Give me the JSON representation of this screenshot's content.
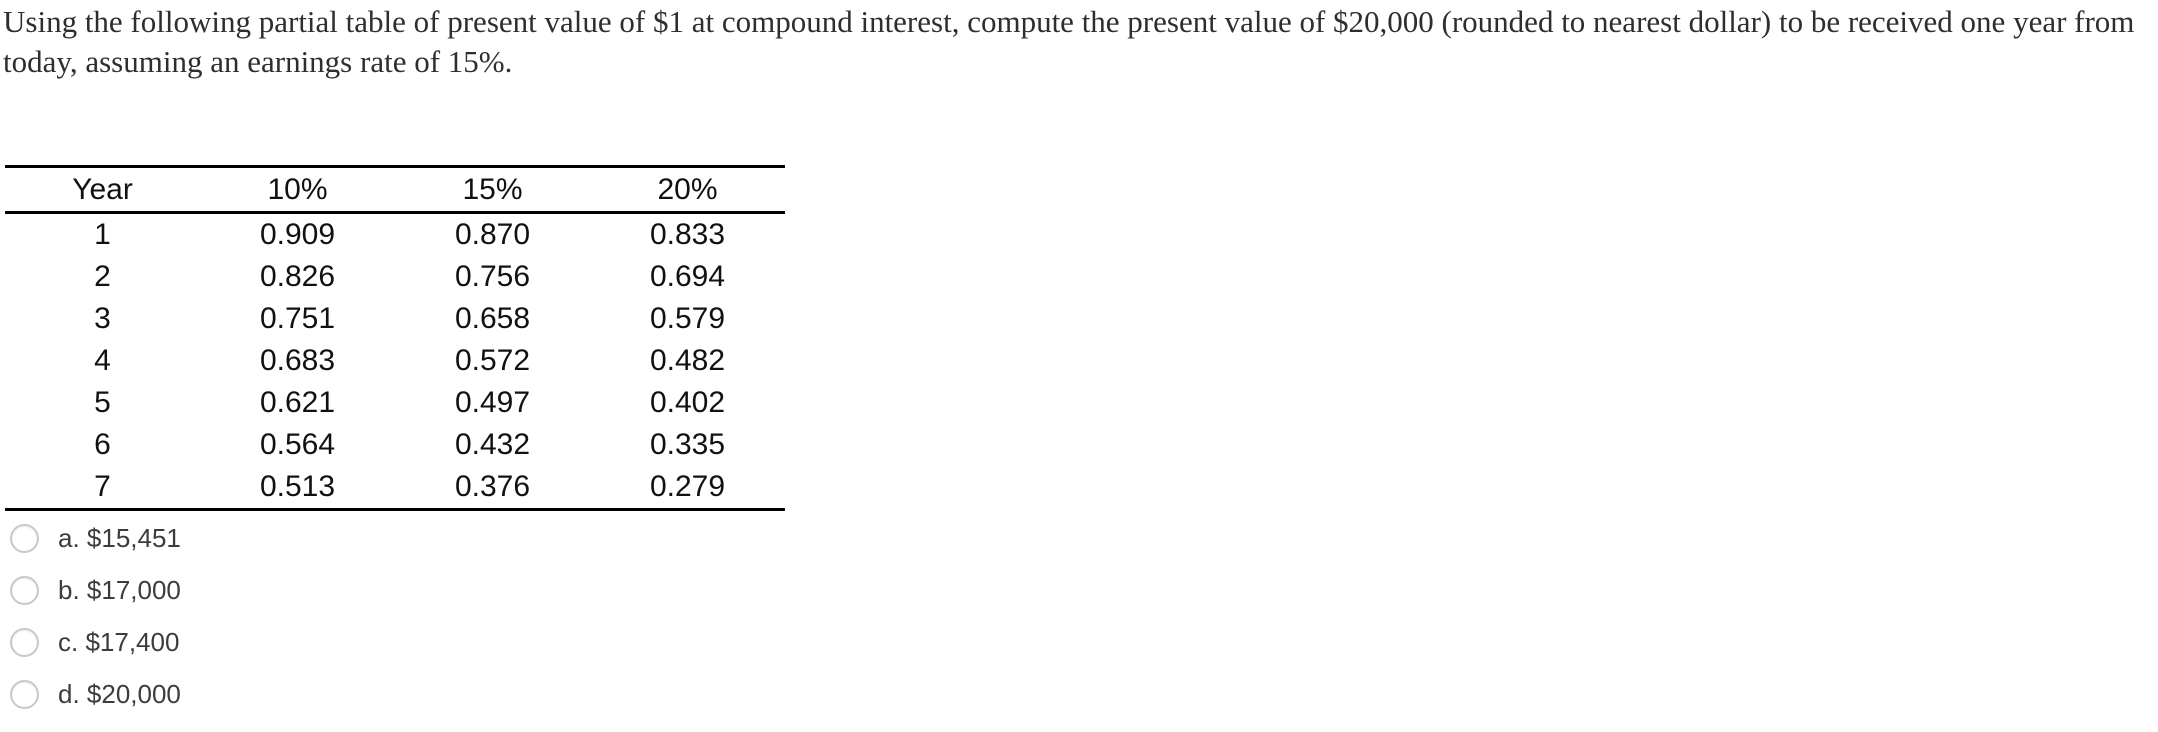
{
  "question": {
    "lines": [
      "Using the following partial table of present value of $1 at compound interest, compute the present value of $20,000 (rounded to nearest dollar) to be received one year from",
      "today, assuming an earnings rate of 15%."
    ]
  },
  "table": {
    "headers": [
      "Year",
      "10%",
      "15%",
      "20%"
    ],
    "rows": [
      [
        "1",
        "0.909",
        "0.870",
        "0.833"
      ],
      [
        "2",
        "0.826",
        "0.756",
        "0.694"
      ],
      [
        "3",
        "0.751",
        "0.658",
        "0.579"
      ],
      [
        "4",
        "0.683",
        "0.572",
        "0.482"
      ],
      [
        "5",
        "0.621",
        "0.497",
        "0.402"
      ],
      [
        "6",
        "0.564",
        "0.432",
        "0.335"
      ],
      [
        "7",
        "0.513",
        "0.376",
        "0.279"
      ]
    ]
  },
  "options": [
    {
      "key": "a",
      "label": "a. $15,451"
    },
    {
      "key": "b",
      "label": "b. $17,000"
    },
    {
      "key": "c",
      "label": "c. $17,400"
    },
    {
      "key": "d",
      "label": "d. $20,000"
    }
  ],
  "colors": {
    "background": "#ffffff",
    "question_text": "#2e2e2e",
    "table_text": "#111111",
    "table_border": "#000000",
    "option_text": "#3c3c3c",
    "radio_border": "#c8c8c8"
  }
}
